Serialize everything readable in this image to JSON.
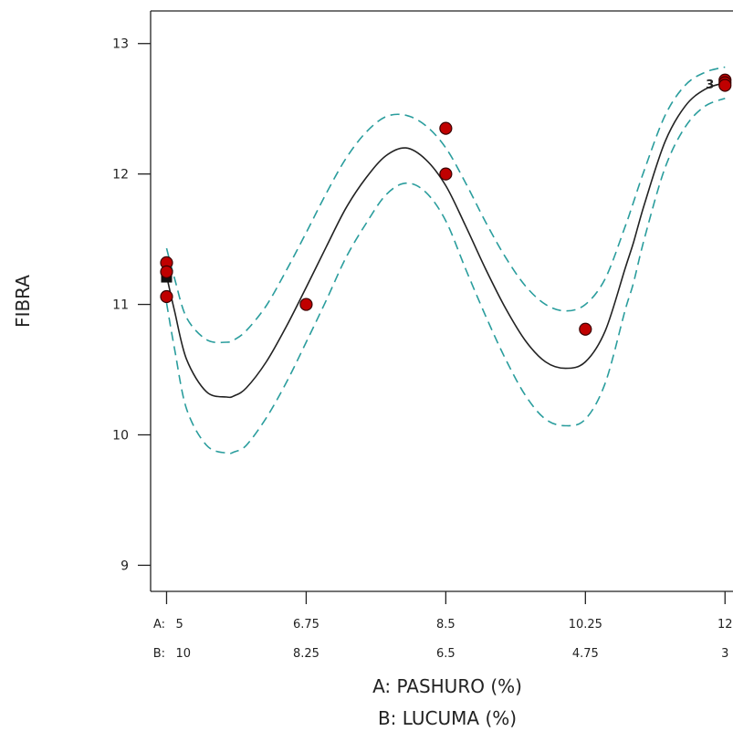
{
  "chart_data": {
    "type": "line",
    "ylabel": "FIBRA",
    "xlabel_a": "A: PASHURO (%)",
    "xlabel_b": "B: LUCUMA (%)",
    "ylim": [
      8.8,
      13.25
    ],
    "yticks": [
      "9",
      "10",
      "11",
      "12",
      "13"
    ],
    "xlim": [
      4.8,
      12.1
    ],
    "a_axis": {
      "prefix": "A:",
      "ticks": [
        "5",
        "6.75",
        "8.5",
        "10.25",
        "12"
      ]
    },
    "b_axis": {
      "prefix": "B:",
      "ticks": [
        "10",
        "8.25",
        "6.5",
        "4.75",
        "3"
      ]
    },
    "design_point_label": "3",
    "grid": false,
    "series": [
      {
        "style": "solid-black",
        "x": [
          5.0,
          5.1,
          5.25,
          5.5,
          5.75,
          5.85,
          6.0,
          6.25,
          6.5,
          6.75,
          7.0,
          7.25,
          7.5,
          7.75,
          8.0,
          8.25,
          8.5,
          8.75,
          9.0,
          9.25,
          9.5,
          9.75,
          10.0,
          10.25,
          10.5,
          10.75,
          10.85,
          11.0,
          11.25,
          11.5,
          11.75,
          12.0
        ],
        "values": [
          11.22,
          10.95,
          10.58,
          10.33,
          10.29,
          10.3,
          10.36,
          10.56,
          10.83,
          11.13,
          11.44,
          11.74,
          11.97,
          12.14,
          12.2,
          12.11,
          11.91,
          11.6,
          11.27,
          10.97,
          10.72,
          10.56,
          10.51,
          10.56,
          10.8,
          11.28,
          11.47,
          11.79,
          12.25,
          12.52,
          12.65,
          12.7
        ]
      },
      {
        "style": "dashed-teal-upper",
        "x": [
          5.0,
          5.1,
          5.25,
          5.5,
          5.75,
          5.85,
          6.0,
          6.25,
          6.5,
          6.75,
          7.0,
          7.25,
          7.5,
          7.75,
          8.0,
          8.25,
          8.5,
          8.75,
          9.0,
          9.25,
          9.5,
          9.75,
          10.0,
          10.25,
          10.5,
          10.75,
          10.85,
          11.0,
          11.25,
          11.5,
          11.75,
          12.0
        ],
        "values": [
          11.43,
          11.2,
          10.9,
          10.73,
          10.71,
          10.73,
          10.8,
          10.99,
          11.26,
          11.55,
          11.85,
          12.12,
          12.32,
          12.44,
          12.45,
          12.37,
          12.2,
          11.93,
          11.63,
          11.36,
          11.14,
          11.0,
          10.95,
          11.0,
          11.2,
          11.6,
          11.78,
          12.05,
          12.45,
          12.68,
          12.78,
          12.82
        ]
      },
      {
        "style": "dashed-teal-lower",
        "x": [
          5.0,
          5.1,
          5.25,
          5.5,
          5.75,
          5.85,
          6.0,
          6.25,
          6.5,
          6.75,
          7.0,
          7.25,
          7.5,
          7.75,
          8.0,
          8.25,
          8.5,
          8.75,
          9.0,
          9.25,
          9.5,
          9.75,
          10.0,
          10.25,
          10.5,
          10.75,
          10.85,
          11.0,
          11.25,
          11.5,
          11.75,
          12.0
        ],
        "values": [
          11.01,
          10.66,
          10.2,
          9.92,
          9.86,
          9.87,
          9.92,
          10.13,
          10.4,
          10.71,
          11.03,
          11.36,
          11.62,
          11.84,
          11.93,
          11.86,
          11.64,
          11.27,
          10.91,
          10.58,
          10.3,
          10.12,
          10.07,
          10.12,
          10.4,
          10.96,
          11.16,
          11.53,
          12.05,
          12.36,
          12.52,
          12.58
        ]
      }
    ],
    "points": {
      "x": [
        5,
        5,
        5,
        6.75,
        8.5,
        8.5,
        10.25,
        12,
        12,
        12
      ],
      "values": [
        11.32,
        11.25,
        11.06,
        11.0,
        12.35,
        12.0,
        10.81,
        12.72,
        12.7,
        12.68
      ]
    },
    "colors": {
      "fit": "#222222",
      "interval": "#2a9d9d",
      "point_fill": "#c00000",
      "point_stroke": "#3a0000"
    }
  }
}
